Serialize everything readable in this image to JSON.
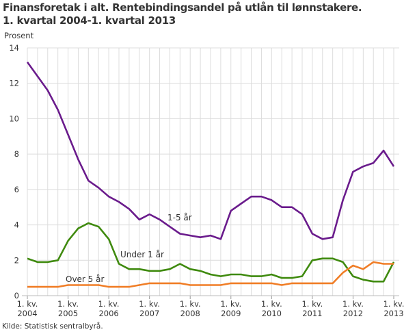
{
  "chart_data": {
    "type": "line",
    "title": "Finansforetak i alt. Rentebindingsandel på utlån til lønnstakere.",
    "subtitle": "1. kvartal 2004-1. kvartal 2013",
    "ylabel": "Prosent",
    "xlabel": "",
    "ylim": [
      0,
      14
    ],
    "yticks": [
      0,
      2,
      4,
      6,
      8,
      10,
      12,
      14
    ],
    "xticks": [
      {
        "q": "1. kv.",
        "year": "2004"
      },
      {
        "q": "1. kv.",
        "year": "2005"
      },
      {
        "q": "1. kv.",
        "year": "2006"
      },
      {
        "q": "1. kv.",
        "year": "2007"
      },
      {
        "q": "1. kv.",
        "year": "2008"
      },
      {
        "q": "1. kv.",
        "year": "2009"
      },
      {
        "q": "1. kv.",
        "year": "2010"
      },
      {
        "q": "1. kv.",
        "year": "2011"
      },
      {
        "q": "1. kv.",
        "year": "2012"
      },
      {
        "q": "1. kv.",
        "year": "2013"
      }
    ],
    "grid": true,
    "x_start": "2004Q1",
    "x_end": "2013Q1",
    "series": [
      {
        "name": "1-5 år",
        "color": "#6a1b8c",
        "values": [
          13.2,
          12.4,
          11.6,
          10.5,
          9.1,
          7.7,
          6.5,
          6.1,
          5.6,
          5.3,
          4.9,
          4.3,
          4.6,
          4.3,
          3.9,
          3.5,
          3.4,
          3.3,
          3.4,
          3.2,
          4.8,
          5.2,
          5.6,
          5.6,
          5.4,
          5.0,
          5.0,
          4.6,
          3.5,
          3.2,
          3.3,
          5.4,
          7.0,
          7.3,
          7.5,
          8.2,
          7.3
        ]
      },
      {
        "name": "Under 1 år",
        "color": "#3f8a0e",
        "values": [
          2.1,
          1.9,
          1.9,
          2.0,
          3.1,
          3.8,
          4.1,
          3.9,
          3.2,
          1.8,
          1.5,
          1.5,
          1.4,
          1.4,
          1.5,
          1.8,
          1.5,
          1.4,
          1.2,
          1.1,
          1.2,
          1.2,
          1.1,
          1.1,
          1.2,
          1.0,
          1.0,
          1.1,
          2.0,
          2.1,
          2.1,
          1.9,
          1.1,
          0.9,
          0.8,
          0.8,
          1.9
        ]
      },
      {
        "name": "Over 5 år",
        "color": "#f07d26",
        "values": [
          0.5,
          0.5,
          0.5,
          0.5,
          0.6,
          0.6,
          0.6,
          0.6,
          0.5,
          0.5,
          0.5,
          0.6,
          0.7,
          0.7,
          0.7,
          0.7,
          0.6,
          0.6,
          0.6,
          0.6,
          0.7,
          0.7,
          0.7,
          0.7,
          0.7,
          0.6,
          0.7,
          0.7,
          0.7,
          0.7,
          0.7,
          1.3,
          1.7,
          1.5,
          1.9,
          1.8,
          1.8
        ]
      }
    ],
    "source": "Kilde: Statistisk sentralbyrå."
  }
}
